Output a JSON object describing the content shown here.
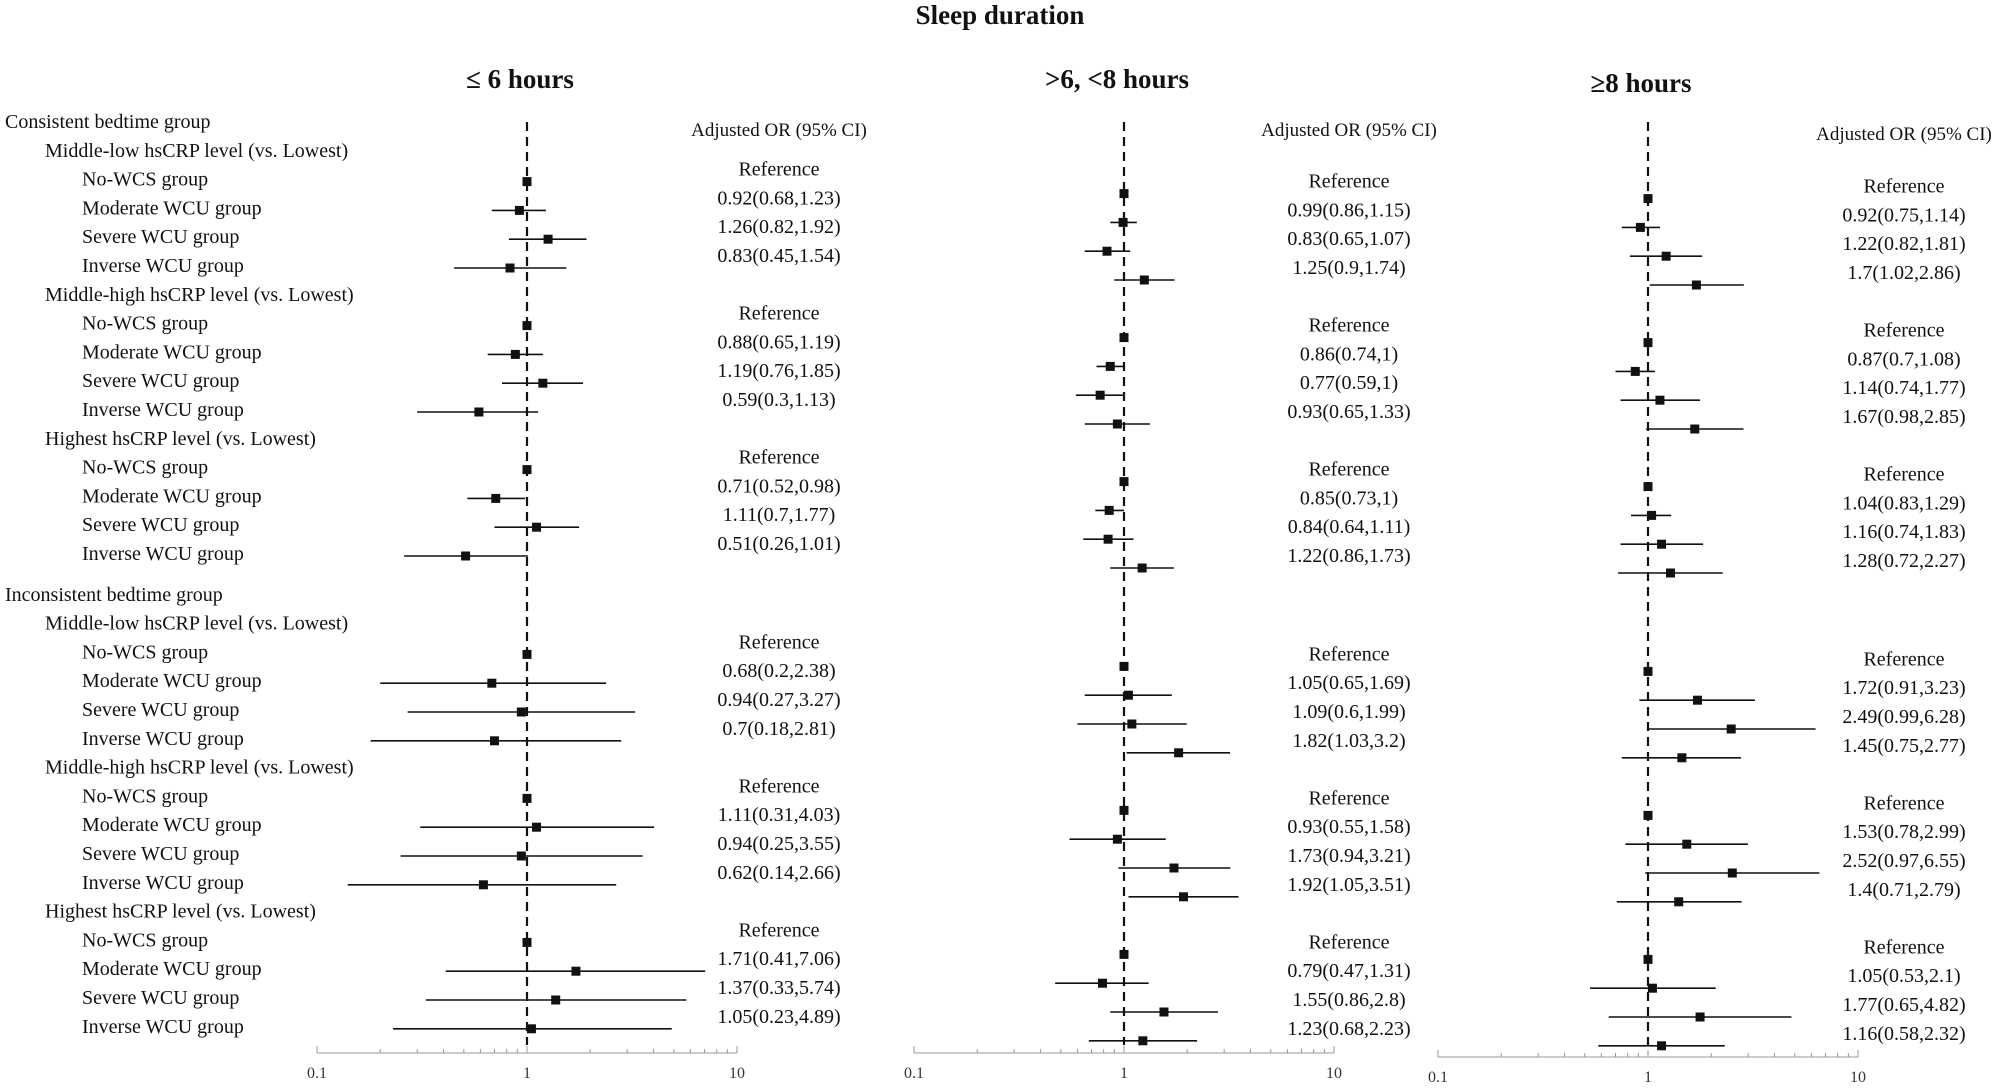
{
  "chart_data": {
    "type": "forest",
    "title": "Sleep duration",
    "column_header": "Adjusted OR (95% CI)",
    "reference_label": "Reference",
    "x_scale": "log",
    "xlim": [
      0.1,
      10
    ],
    "x_ticks": [
      "0.1",
      "1",
      "10"
    ],
    "reference_value": 1,
    "rows": [
      {
        "label": "Consistent bedtime group",
        "level": 0,
        "type": "group"
      },
      {
        "label": "Middle-low hsCRP level (vs. Lowest)",
        "level": 1,
        "type": "subgroup"
      },
      {
        "label": "No-WCS group",
        "level": 2,
        "type": "item"
      },
      {
        "label": "Moderate WCU group",
        "level": 2,
        "type": "item"
      },
      {
        "label": "Severe WCU group",
        "level": 2,
        "type": "item"
      },
      {
        "label": "Inverse WCU group",
        "level": 2,
        "type": "item"
      },
      {
        "label": "Middle-high hsCRP level (vs. Lowest)",
        "level": 1,
        "type": "subgroup"
      },
      {
        "label": "No-WCS group",
        "level": 2,
        "type": "item"
      },
      {
        "label": "Moderate WCU group",
        "level": 2,
        "type": "item"
      },
      {
        "label": "Severe WCU group",
        "level": 2,
        "type": "item"
      },
      {
        "label": "Inverse WCU group",
        "level": 2,
        "type": "item"
      },
      {
        "label": "Highest hsCRP level (vs. Lowest)",
        "level": 1,
        "type": "subgroup"
      },
      {
        "label": "No-WCS group",
        "level": 2,
        "type": "item"
      },
      {
        "label": "Moderate WCU group",
        "level": 2,
        "type": "item"
      },
      {
        "label": "Severe WCU group",
        "level": 2,
        "type": "item"
      },
      {
        "label": "Inverse WCU group",
        "level": 2,
        "type": "item"
      },
      {
        "label": "Inconsistent bedtime group",
        "level": 0,
        "type": "group"
      },
      {
        "label": "Middle-low hsCRP level (vs. Lowest)",
        "level": 1,
        "type": "subgroup"
      },
      {
        "label": "No-WCS group",
        "level": 2,
        "type": "item"
      },
      {
        "label": "Moderate WCU group",
        "level": 2,
        "type": "item"
      },
      {
        "label": "Severe WCU group",
        "level": 2,
        "type": "item"
      },
      {
        "label": "Inverse WCU group",
        "level": 2,
        "type": "item"
      },
      {
        "label": "Middle-high hsCRP level (vs. Lowest)",
        "level": 1,
        "type": "subgroup"
      },
      {
        "label": "No-WCS group",
        "level": 2,
        "type": "item"
      },
      {
        "label": "Moderate WCU group",
        "level": 2,
        "type": "item"
      },
      {
        "label": "Severe WCU group",
        "level": 2,
        "type": "item"
      },
      {
        "label": "Inverse WCU group",
        "level": 2,
        "type": "item"
      },
      {
        "label": "Highest hsCRP level (vs. Lowest)",
        "level": 1,
        "type": "subgroup"
      },
      {
        "label": "No-WCS group",
        "level": 2,
        "type": "item"
      },
      {
        "label": "Moderate WCU group",
        "level": 2,
        "type": "item"
      },
      {
        "label": "Severe WCU group",
        "level": 2,
        "type": "item"
      },
      {
        "label": "Inverse WCU group",
        "level": 2,
        "type": "item"
      }
    ],
    "panels": [
      {
        "title": "≤ 6 hours",
        "estimates": [
          {
            "or": 1,
            "lo": 1,
            "hi": 1,
            "text": "Reference"
          },
          {
            "or": 0.92,
            "lo": 0.68,
            "hi": 1.23,
            "text": "0.92(0.68,1.23)"
          },
          {
            "or": 1.26,
            "lo": 0.82,
            "hi": 1.92,
            "text": "1.26(0.82,1.92)"
          },
          {
            "or": 0.83,
            "lo": 0.45,
            "hi": 1.54,
            "text": "0.83(0.45,1.54)"
          },
          {
            "or": 1,
            "lo": 1,
            "hi": 1,
            "text": "Reference"
          },
          {
            "or": 0.88,
            "lo": 0.65,
            "hi": 1.19,
            "text": "0.88(0.65,1.19)"
          },
          {
            "or": 1.19,
            "lo": 0.76,
            "hi": 1.85,
            "text": "1.19(0.76,1.85)"
          },
          {
            "or": 0.59,
            "lo": 0.3,
            "hi": 1.13,
            "text": "0.59(0.3,1.13)"
          },
          {
            "or": 1,
            "lo": 1,
            "hi": 1,
            "text": "Reference"
          },
          {
            "or": 0.71,
            "lo": 0.52,
            "hi": 0.98,
            "text": "0.71(0.52,0.98)"
          },
          {
            "or": 1.11,
            "lo": 0.7,
            "hi": 1.77,
            "text": "1.11(0.7,1.77)"
          },
          {
            "or": 0.51,
            "lo": 0.26,
            "hi": 1.01,
            "text": "0.51(0.26,1.01)"
          },
          {
            "or": 1,
            "lo": 1,
            "hi": 1,
            "text": "Reference"
          },
          {
            "or": 0.68,
            "lo": 0.2,
            "hi": 2.38,
            "text": "0.68(0.2,2.38)"
          },
          {
            "or": 0.94,
            "lo": 0.27,
            "hi": 3.27,
            "text": "0.94(0.27,3.27)"
          },
          {
            "or": 0.7,
            "lo": 0.18,
            "hi": 2.81,
            "text": "0.7(0.18,2.81)"
          },
          {
            "or": 1,
            "lo": 1,
            "hi": 1,
            "text": "Reference"
          },
          {
            "or": 1.11,
            "lo": 0.31,
            "hi": 4.03,
            "text": "1.11(0.31,4.03)"
          },
          {
            "or": 0.94,
            "lo": 0.25,
            "hi": 3.55,
            "text": "0.94(0.25,3.55)"
          },
          {
            "or": 0.62,
            "lo": 0.14,
            "hi": 2.66,
            "text": "0.62(0.14,2.66)"
          },
          {
            "or": 1,
            "lo": 1,
            "hi": 1,
            "text": "Reference"
          },
          {
            "or": 1.71,
            "lo": 0.41,
            "hi": 7.06,
            "text": "1.71(0.41,7.06)"
          },
          {
            "or": 1.37,
            "lo": 0.33,
            "hi": 5.74,
            "text": "1.37(0.33,5.74)"
          },
          {
            "or": 1.05,
            "lo": 0.23,
            "hi": 4.89,
            "text": "1.05(0.23,4.89)"
          }
        ]
      },
      {
        "title": ">6, <8 hours",
        "estimates": [
          {
            "or": 1,
            "lo": 1,
            "hi": 1,
            "text": "Reference"
          },
          {
            "or": 0.99,
            "lo": 0.86,
            "hi": 1.15,
            "text": "0.99(0.86,1.15)"
          },
          {
            "or": 0.83,
            "lo": 0.65,
            "hi": 1.07,
            "text": "0.83(0.65,1.07)"
          },
          {
            "or": 1.25,
            "lo": 0.9,
            "hi": 1.74,
            "text": "1.25(0.9,1.74)"
          },
          {
            "or": 1,
            "lo": 1,
            "hi": 1,
            "text": "Reference"
          },
          {
            "or": 0.86,
            "lo": 0.74,
            "hi": 1,
            "text": "0.86(0.74,1)"
          },
          {
            "or": 0.77,
            "lo": 0.59,
            "hi": 1,
            "text": "0.77(0.59,1)"
          },
          {
            "or": 0.93,
            "lo": 0.65,
            "hi": 1.33,
            "text": "0.93(0.65,1.33)"
          },
          {
            "or": 1,
            "lo": 1,
            "hi": 1,
            "text": "Reference"
          },
          {
            "or": 0.85,
            "lo": 0.73,
            "hi": 1,
            "text": "0.85(0.73,1)"
          },
          {
            "or": 0.84,
            "lo": 0.64,
            "hi": 1.11,
            "text": "0.84(0.64,1.11)"
          },
          {
            "or": 1.22,
            "lo": 0.86,
            "hi": 1.73,
            "text": "1.22(0.86,1.73)"
          },
          {
            "or": 1,
            "lo": 1,
            "hi": 1,
            "text": "Reference"
          },
          {
            "or": 1.05,
            "lo": 0.65,
            "hi": 1.69,
            "text": "1.05(0.65,1.69)"
          },
          {
            "or": 1.09,
            "lo": 0.6,
            "hi": 1.99,
            "text": "1.09(0.6,1.99)"
          },
          {
            "or": 1.82,
            "lo": 1.03,
            "hi": 3.2,
            "text": "1.82(1.03,3.2)"
          },
          {
            "or": 1,
            "lo": 1,
            "hi": 1,
            "text": "Reference"
          },
          {
            "or": 0.93,
            "lo": 0.55,
            "hi": 1.58,
            "text": "0.93(0.55,1.58)"
          },
          {
            "or": 1.73,
            "lo": 0.94,
            "hi": 3.21,
            "text": "1.73(0.94,3.21)"
          },
          {
            "or": 1.92,
            "lo": 1.05,
            "hi": 3.51,
            "text": "1.92(1.05,3.51)"
          },
          {
            "or": 1,
            "lo": 1,
            "hi": 1,
            "text": "Reference"
          },
          {
            "or": 0.79,
            "lo": 0.47,
            "hi": 1.31,
            "text": "0.79(0.47,1.31)"
          },
          {
            "or": 1.55,
            "lo": 0.86,
            "hi": 2.8,
            "text": "1.55(0.86,2.8)"
          },
          {
            "or": 1.23,
            "lo": 0.68,
            "hi": 2.23,
            "text": "1.23(0.68,2.23)"
          }
        ]
      },
      {
        "title": "≥8 hours",
        "estimates": [
          {
            "or": 1,
            "lo": 1,
            "hi": 1,
            "text": "Reference"
          },
          {
            "or": 0.92,
            "lo": 0.75,
            "hi": 1.14,
            "text": "0.92(0.75,1.14)"
          },
          {
            "or": 1.22,
            "lo": 0.82,
            "hi": 1.81,
            "text": "1.22(0.82,1.81)"
          },
          {
            "or": 1.7,
            "lo": 1.02,
            "hi": 2.86,
            "text": "1.7(1.02,2.86)"
          },
          {
            "or": 1,
            "lo": 1,
            "hi": 1,
            "text": "Reference"
          },
          {
            "or": 0.87,
            "lo": 0.7,
            "hi": 1.08,
            "text": "0.87(0.7,1.08)"
          },
          {
            "or": 1.14,
            "lo": 0.74,
            "hi": 1.77,
            "text": "1.14(0.74,1.77)"
          },
          {
            "or": 1.67,
            "lo": 0.98,
            "hi": 2.85,
            "text": "1.67(0.98,2.85)"
          },
          {
            "or": 1,
            "lo": 1,
            "hi": 1,
            "text": "Reference"
          },
          {
            "or": 1.04,
            "lo": 0.83,
            "hi": 1.29,
            "text": "1.04(0.83,1.29)"
          },
          {
            "or": 1.16,
            "lo": 0.74,
            "hi": 1.83,
            "text": "1.16(0.74,1.83)"
          },
          {
            "or": 1.28,
            "lo": 0.72,
            "hi": 2.27,
            "text": "1.28(0.72,2.27)"
          },
          {
            "or": 1,
            "lo": 1,
            "hi": 1,
            "text": "Reference"
          },
          {
            "or": 1.72,
            "lo": 0.91,
            "hi": 3.23,
            "text": "1.72(0.91,3.23)"
          },
          {
            "or": 2.49,
            "lo": 0.99,
            "hi": 6.28,
            "text": "2.49(0.99,6.28)"
          },
          {
            "or": 1.45,
            "lo": 0.75,
            "hi": 2.77,
            "text": "1.45(0.75,2.77)"
          },
          {
            "or": 1,
            "lo": 1,
            "hi": 1,
            "text": "Reference"
          },
          {
            "or": 1.53,
            "lo": 0.78,
            "hi": 2.99,
            "text": "1.53(0.78,2.99)"
          },
          {
            "or": 2.52,
            "lo": 0.97,
            "hi": 6.55,
            "text": "2.52(0.97,6.55)"
          },
          {
            "or": 1.4,
            "lo": 0.71,
            "hi": 2.79,
            "text": "1.4(0.71,2.79)"
          },
          {
            "or": 1,
            "lo": 1,
            "hi": 1,
            "text": "Reference"
          },
          {
            "or": 1.05,
            "lo": 0.53,
            "hi": 2.1,
            "text": "1.05(0.53,2.1)"
          },
          {
            "or": 1.77,
            "lo": 0.65,
            "hi": 4.82,
            "text": "1.77(0.65,4.82)"
          },
          {
            "or": 1.16,
            "lo": 0.58,
            "hi": 2.32,
            "text": "1.16(0.58,2.32)"
          }
        ]
      }
    ]
  }
}
